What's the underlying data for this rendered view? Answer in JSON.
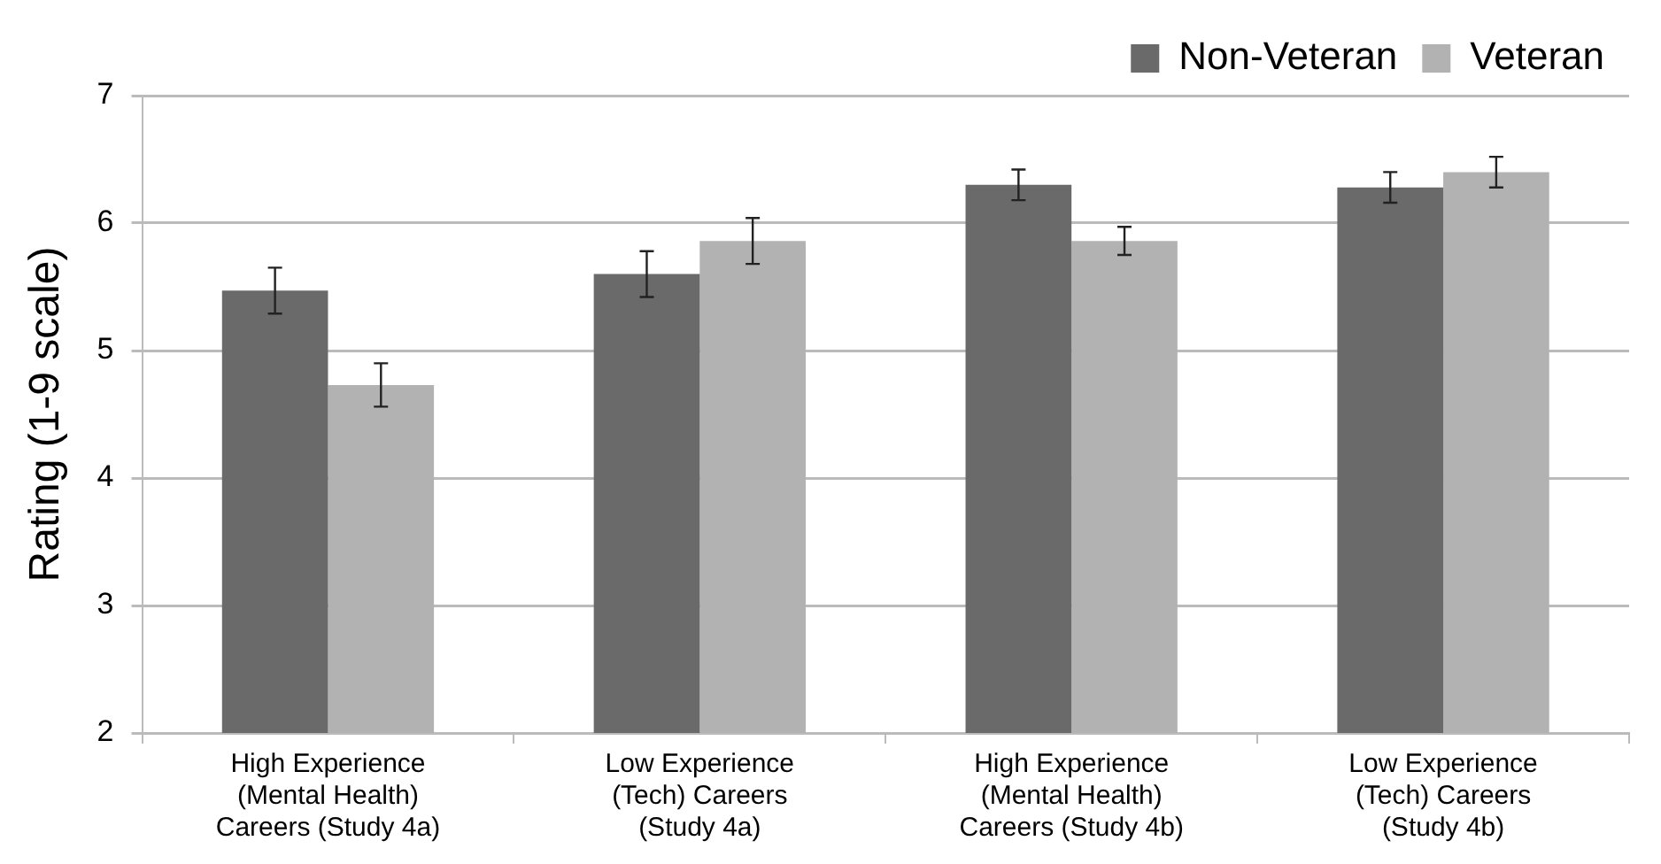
{
  "chart_data": {
    "type": "bar",
    "ylabel": "Rating (1-9 scale)",
    "categories": [
      "High Experience (Mental Health) Careers (Study 4a)",
      "Low Experience (Tech) Careers (Study 4a)",
      "High Experience (Mental Health) Careers (Study 4b)",
      "Low Experience (Tech) Careers (Study 4b)"
    ],
    "series": [
      {
        "name": "Non-Veteran",
        "color": "#6a6a6a",
        "values": [
          5.47,
          5.6,
          6.3,
          6.28
        ],
        "errors": [
          0.18,
          0.18,
          0.12,
          0.12
        ]
      },
      {
        "name": "Veteran",
        "color": "#b2b2b2",
        "values": [
          4.73,
          5.86,
          5.86,
          6.4
        ],
        "errors": [
          0.17,
          0.18,
          0.11,
          0.12
        ]
      }
    ],
    "ylim": [
      2,
      7
    ],
    "yticks": [
      2,
      3,
      4,
      5,
      6,
      7
    ],
    "grid": "y",
    "legend": "top right"
  }
}
